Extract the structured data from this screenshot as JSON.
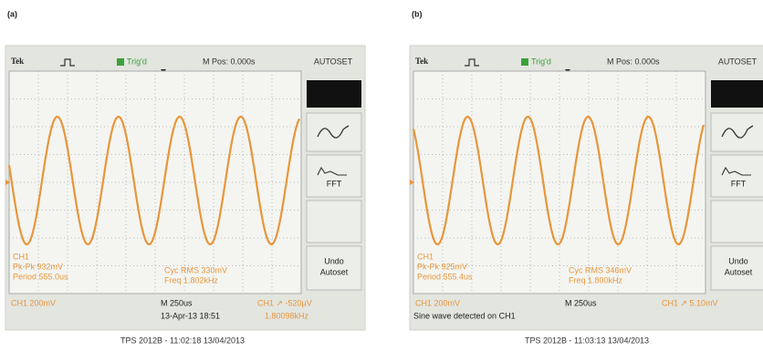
{
  "panels": [
    {
      "label": "(a)",
      "brand": "Tek",
      "trigger": "Trig'd",
      "position": "M Pos: 0.000s",
      "menu": [
        "AUTOSET",
        "FFT",
        "Undo",
        "Autoset"
      ],
      "left_readout": [
        "CH1",
        "Pk-Pk 932mV",
        "Period 555.0us"
      ],
      "right_readout": [
        "Cyc RMS 330mV",
        "Freq 1.802kHz"
      ],
      "channel": "CH1 200mV",
      "timebase": "M 250us",
      "trigger_level": "CH1 ↗ -520μV",
      "status": "13-Apr-13 18:51",
      "counter": "1.80098kHz",
      "footer": "TPS 2012B - 11:02:18 13/04/2013"
    },
    {
      "label": "(b)",
      "brand": "Tek",
      "trigger": "Trig'd",
      "position": "M Pos: 0.000s",
      "menu": [
        "AUTOSET",
        "FFT",
        "Undo",
        "Autoset"
      ],
      "left_readout": [
        "CH1",
        "Pk-Pk 925mV",
        "Period 555.4us"
      ],
      "right_readout": [
        "Cyc RMS 346mV",
        "Freq 1.800kHz"
      ],
      "channel": "CH1 200mV",
      "timebase": "M 250us",
      "trigger_level": "CH1 ↗ 5.10mV",
      "status": "Sine wave detected on CH1",
      "footer": "TPS 2012B - 11:03:13 13/04/2013"
    }
  ]
}
